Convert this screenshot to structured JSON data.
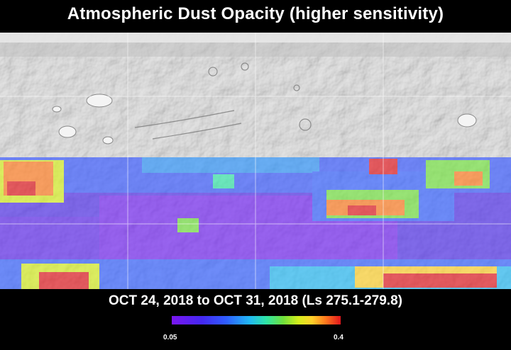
{
  "title": "Atmospheric Dust Opacity (higher sensitivity)",
  "date_range": "OCT 24, 2018 to OCT 31, 2018 (Ls 275.1-279.8)",
  "colorbar": {
    "min_label": "0.05",
    "max_label": "0.4",
    "colors": [
      "#7a16f0",
      "#4428f2",
      "#2f5cff",
      "#21b8f4",
      "#2fe5a6",
      "#70e03c",
      "#d4ee1c",
      "#ffd12a",
      "#ff7a1e",
      "#e1151c"
    ]
  },
  "map": {
    "base_map": "grayscale shaded-relief Mars surface",
    "grid": true,
    "data_coverage": "southern portion only; northern portion shows bare terrain"
  }
}
